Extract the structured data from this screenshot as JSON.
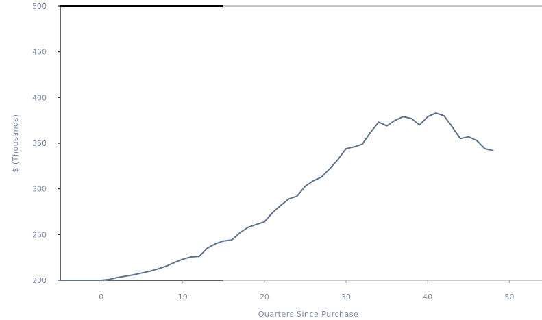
{
  "chart_data": {
    "type": "line",
    "title": "",
    "xlabel": "Quarters Since Purchase",
    "ylabel": "$ (Thousands)",
    "xlim": [
      -5,
      54
    ],
    "ylim": [
      200,
      500
    ],
    "xticks": [
      0,
      10,
      20,
      30,
      40,
      50
    ],
    "yticks": [
      200,
      250,
      300,
      350,
      400,
      450,
      500
    ],
    "grid": false,
    "legend": "none",
    "series": [
      {
        "color": "#5b7290",
        "points": [
          [
            -5,
            200
          ],
          [
            0,
            200
          ],
          [
            1,
            201
          ],
          [
            2,
            203
          ],
          [
            3,
            204.5
          ],
          [
            4,
            206
          ],
          [
            5,
            208
          ],
          [
            6,
            210
          ],
          [
            7,
            212.5
          ],
          [
            8,
            215.5
          ],
          [
            9,
            219.5
          ],
          [
            10,
            223
          ],
          [
            11,
            225.5
          ],
          [
            12,
            226
          ],
          [
            13,
            235
          ],
          [
            14,
            240
          ],
          [
            15,
            243
          ],
          [
            16,
            244
          ],
          [
            17,
            252
          ],
          [
            18,
            258
          ],
          [
            19,
            261
          ],
          [
            20,
            264
          ],
          [
            21,
            274
          ],
          [
            22,
            282
          ],
          [
            23,
            289
          ],
          [
            24,
            292
          ],
          [
            25,
            303
          ],
          [
            26,
            309
          ],
          [
            27,
            313
          ],
          [
            28,
            322
          ],
          [
            29,
            332
          ],
          [
            30,
            344
          ],
          [
            31,
            346
          ],
          [
            32,
            349
          ],
          [
            33,
            362
          ],
          [
            34,
            373
          ],
          [
            35,
            369
          ],
          [
            36,
            375
          ],
          [
            37,
            379
          ],
          [
            38,
            377
          ],
          [
            39,
            370
          ],
          [
            40,
            379
          ],
          [
            41,
            383
          ],
          [
            42,
            380
          ],
          [
            43,
            368
          ],
          [
            44,
            355
          ],
          [
            45,
            357
          ],
          [
            46,
            353
          ],
          [
            47,
            344
          ],
          [
            48,
            342
          ]
        ]
      }
    ]
  },
  "colors": {
    "line": "#5b7290",
    "axis": "#000000",
    "axis_top": "#c8c8c8",
    "text": "#7d8db0"
  }
}
